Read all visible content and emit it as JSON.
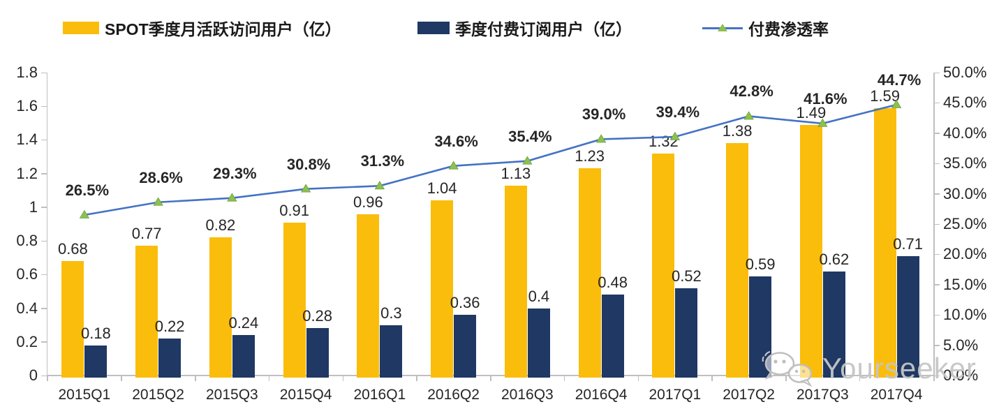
{
  "legend": {
    "items": [
      {
        "label": "SPOT季度月活跃访问用户（亿）",
        "swatch_color": "#FBBD0B",
        "type": "bar"
      },
      {
        "label": "季度付费订阅用户（亿）",
        "swatch_color": "#1F3864",
        "type": "bar"
      },
      {
        "label": "付费渗透率",
        "line_color": "#4472C4",
        "marker_color": "#8DC04F",
        "type": "line"
      }
    ]
  },
  "chart_data": {
    "type": "combo-bar-line",
    "legend_position": "top",
    "grid": false,
    "categories": [
      "2015Q1",
      "2015Q2",
      "2015Q3",
      "2015Q4",
      "2016Q1",
      "2016Q2",
      "2016Q3",
      "2016Q4",
      "2017Q1",
      "2017Q2",
      "2017Q3",
      "2017Q4"
    ],
    "series": [
      {
        "name": "SPOT季度月活跃访问用户（亿）",
        "type": "bar",
        "axis": "left",
        "color": "#FBBD0B",
        "values": [
          0.68,
          0.77,
          0.82,
          0.91,
          0.96,
          1.04,
          1.13,
          1.23,
          1.32,
          1.38,
          1.49,
          1.59
        ],
        "labels": [
          "0.68",
          "0.77",
          "0.82",
          "0.91",
          "0.96",
          "1.04",
          "1.13",
          "1.23",
          "1.32",
          "1.38",
          "1.49",
          "1.59"
        ]
      },
      {
        "name": "季度付费订阅用户（亿）",
        "type": "bar",
        "axis": "left",
        "color": "#1F3864",
        "values": [
          0.18,
          0.22,
          0.24,
          0.28,
          0.3,
          0.36,
          0.4,
          0.48,
          0.52,
          0.59,
          0.62,
          0.71
        ],
        "labels": [
          "0.18",
          "0.22",
          "0.24",
          "0.28",
          "0.3",
          "0.36",
          "0.4",
          "0.48",
          "0.52",
          "0.59",
          "0.62",
          "0.71"
        ]
      },
      {
        "name": "付费渗透率",
        "type": "line",
        "axis": "right",
        "color": "#4472C4",
        "marker": "triangle",
        "marker_color": "#8DC04F",
        "values": [
          26.5,
          28.6,
          29.3,
          30.8,
          31.3,
          34.6,
          35.4,
          39.0,
          39.4,
          42.8,
          41.6,
          44.7
        ],
        "labels": [
          "26.5%",
          "28.6%",
          "29.3%",
          "30.8%",
          "31.3%",
          "34.6%",
          "35.4%",
          "39.0%",
          "39.4%",
          "42.8%",
          "41.6%",
          "44.7%"
        ]
      }
    ],
    "left_axis": {
      "min": 0,
      "max": 1.8,
      "ticks": [
        "1.8",
        "1.6",
        "1.4",
        "1.2",
        "1",
        "0.8",
        "0.6",
        "0.4",
        "0.2",
        "0"
      ]
    },
    "right_axis": {
      "min": 0,
      "max": 50,
      "ticks": [
        "50.0%",
        "45.0%",
        "40.0%",
        "35.0%",
        "30.0%",
        "25.0%",
        "20.0%",
        "15.0%",
        "10.0%",
        "5.0%",
        "0.0%"
      ]
    }
  },
  "watermark": {
    "text": "Yourseeker",
    "icon": "wechat-icon"
  },
  "colors": {
    "bar_primary": "#FBBD0B",
    "bar_secondary": "#1F3864",
    "line": "#4472C4",
    "marker": "#8DC04F",
    "axis": "#BFBFBF",
    "label_text": "#262626",
    "watermark": "#C5C5C5"
  }
}
